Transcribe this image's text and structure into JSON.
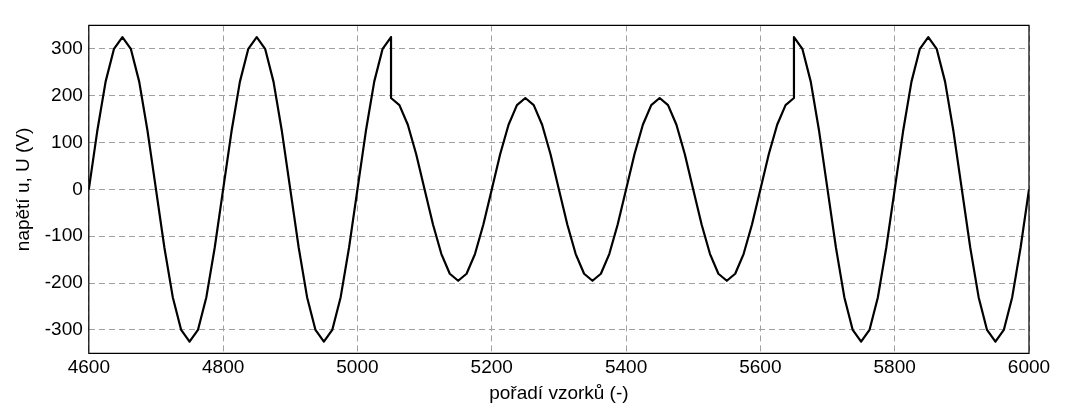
{
  "chart_data": {
    "type": "line",
    "xlabel": "pořadí vzorků (-)",
    "ylabel": "napětí u, U (V)",
    "xlim": [
      4600,
      6000
    ],
    "xticks": [
      4600,
      4800,
      5000,
      5200,
      5400,
      5600,
      5800,
      6000
    ],
    "ylim": [
      -350,
      350
    ],
    "yticks": [
      -300,
      -200,
      -100,
      0,
      100,
      200,
      300
    ],
    "grid": true,
    "legend": false,
    "marker": "none",
    "line_style": "solid",
    "series": [
      {
        "color": "#000000",
        "x": [
          4600,
          4612.5,
          4625,
          4637.5,
          4650,
          4662.5,
          4675,
          4687.5,
          4700,
          4712.5,
          4725,
          4737.5,
          4750,
          4762.5,
          4775,
          4787.5,
          4800,
          4812.5,
          4825,
          4837.5,
          4850,
          4862.5,
          4875,
          4887.5,
          4900,
          4912.5,
          4925,
          4937.5,
          4950,
          4962.5,
          4975,
          4987.5,
          5000,
          5012.5,
          5025,
          5037.5,
          5050,
          5050,
          5062.5,
          5075,
          5087.5,
          5100,
          5112.5,
          5125,
          5137.5,
          5150,
          5162.5,
          5175,
          5187.5,
          5200,
          5212.5,
          5225,
          5237.5,
          5250,
          5262.5,
          5275,
          5287.5,
          5300,
          5312.5,
          5325,
          5337.5,
          5350,
          5362.5,
          5375,
          5387.5,
          5400,
          5412.5,
          5425,
          5437.5,
          5450,
          5462.5,
          5475,
          5487.5,
          5500,
          5512.5,
          5525,
          5537.5,
          5550,
          5562.5,
          5575,
          5587.5,
          5600,
          5612.5,
          5625,
          5637.5,
          5650,
          5650,
          5662.5,
          5675,
          5687.5,
          5700,
          5712.5,
          5725,
          5737.5,
          5750,
          5762.5,
          5775,
          5787.5,
          5800,
          5812.5,
          5825,
          5837.5,
          5850,
          5862.5,
          5875,
          5887.5,
          5900,
          5912.5,
          5925,
          5937.5,
          5950,
          5962.5,
          5975,
          5987.5,
          6000
        ],
        "values": [
          0,
          124,
          230,
          300,
          325,
          300,
          230,
          124,
          0,
          -124,
          -230,
          -300,
          -325,
          -300,
          -230,
          -124,
          0,
          124,
          230,
          300,
          325,
          300,
          230,
          124,
          0,
          -124,
          -230,
          -300,
          -325,
          -300,
          -230,
          -124,
          0,
          124,
          230,
          300,
          325,
          195,
          180,
          138,
          75,
          0,
          -75,
          -138,
          -180,
          -195,
          -180,
          -138,
          -75,
          0,
          75,
          138,
          180,
          195,
          180,
          138,
          75,
          0,
          -75,
          -138,
          -180,
          -195,
          -180,
          -138,
          -75,
          0,
          75,
          138,
          180,
          195,
          180,
          138,
          75,
          0,
          -75,
          -138,
          -180,
          -195,
          -180,
          -138,
          -75,
          0,
          75,
          138,
          180,
          195,
          325,
          300,
          230,
          124,
          0,
          -124,
          -230,
          -300,
          -325,
          -300,
          -230,
          -124,
          0,
          124,
          230,
          300,
          325,
          300,
          230,
          124,
          0,
          -124,
          -230,
          -300,
          -325,
          -300,
          -230,
          -124,
          0
        ]
      }
    ]
  }
}
